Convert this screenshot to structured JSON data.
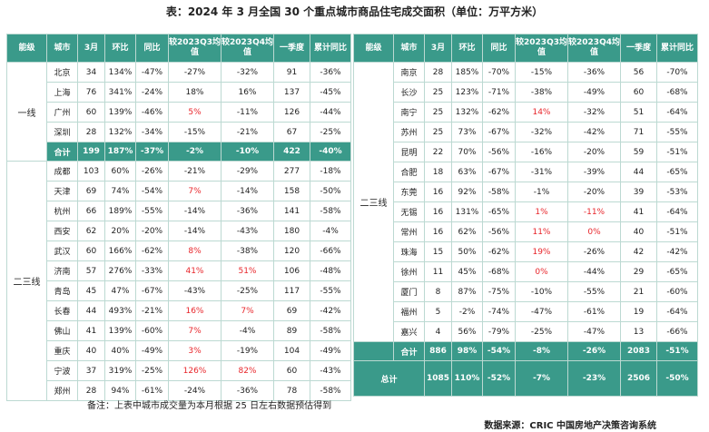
{
  "title": "表：2024 年 3 月全国 30 个重点城市商品住宅成交面积（单位：万平方米）",
  "headers": [
    "能级",
    "城市",
    "3月",
    "环比",
    "同比",
    "较2023Q3均值",
    "较2023Q4均值",
    "一季度",
    "累计同比"
  ],
  "left": {
    "groups": [
      {
        "name": "一线",
        "rows": [
          [
            "北京",
            "34",
            "134%",
            "-47%",
            "-27%",
            "-32%",
            "91",
            "-36%"
          ],
          [
            "上海",
            "76",
            "341%",
            "-24%",
            "18%",
            "16%",
            "137",
            "-45%"
          ],
          [
            "广州",
            "60",
            "139%",
            "-46%",
            "5%",
            "-11%",
            "126",
            "-44%"
          ],
          [
            "深圳",
            "28",
            "132%",
            "-34%",
            "-15%",
            "-21%",
            "67",
            "-25%"
          ]
        ],
        "red": [
          [
            2,
            5
          ]
        ]
      },
      {
        "name": "二三线",
        "rows": [
          [
            "成都",
            "103",
            "60%",
            "-26%",
            "-21%",
            "-29%",
            "277",
            "-18%"
          ],
          [
            "天津",
            "69",
            "74%",
            "-54%",
            "7%",
            "-14%",
            "158",
            "-50%"
          ],
          [
            "杭州",
            "66",
            "189%",
            "-55%",
            "-14%",
            "-36%",
            "141",
            "-58%"
          ],
          [
            "西安",
            "62",
            "20%",
            "-20%",
            "-14%",
            "-43%",
            "180",
            "-4%"
          ],
          [
            "武汉",
            "60",
            "166%",
            "-62%",
            "8%",
            "-38%",
            "120",
            "-66%"
          ],
          [
            "济南",
            "57",
            "276%",
            "-33%",
            "41%",
            "51%",
            "106",
            "-48%"
          ],
          [
            "青岛",
            "45",
            "47%",
            "-67%",
            "-43%",
            "-25%",
            "117",
            "-55%"
          ],
          [
            "长春",
            "44",
            "493%",
            "-21%",
            "16%",
            "7%",
            "69",
            "-42%"
          ],
          [
            "佛山",
            "41",
            "139%",
            "-60%",
            "7%",
            "-4%",
            "89",
            "-58%"
          ],
          [
            "重庆",
            "40",
            "40%",
            "-49%",
            "3%",
            "-19%",
            "104",
            "-49%"
          ],
          [
            "宁波",
            "37",
            "319%",
            "-25%",
            "126%",
            "82%",
            "60",
            "-43%"
          ],
          [
            "郑州",
            "28",
            "94%",
            "-61%",
            "-24%",
            "-36%",
            "78",
            "-58%"
          ]
        ],
        "red": [
          [
            1,
            5
          ],
          [
            4,
            5
          ],
          [
            5,
            5
          ],
          [
            5,
            6
          ],
          [
            7,
            5
          ],
          [
            7,
            6
          ],
          [
            8,
            5
          ],
          [
            9,
            5
          ],
          [
            10,
            5
          ],
          [
            10,
            6
          ]
        ]
      }
    ],
    "total": [
      "合计",
      "199",
      "187%",
      "-37%",
      "-2%",
      "-10%",
      "422",
      "-40%"
    ]
  },
  "right": {
    "group": "二三线",
    "rows_a": [
      [
        "南京",
        "28",
        "185%",
        "-70%",
        "-15%",
        "-36%",
        "56",
        "-70%"
      ],
      [
        "长沙",
        "25",
        "123%",
        "-71%",
        "-38%",
        "-49%",
        "60",
        "-68%"
      ],
      [
        "南宁",
        "25",
        "132%",
        "-62%",
        "14%",
        "-32%",
        "51",
        "-64%"
      ],
      [
        "苏州",
        "25",
        "73%",
        "-67%",
        "-32%",
        "-42%",
        "71",
        "-55%"
      ],
      [
        "昆明",
        "22",
        "70%",
        "-56%",
        "-16%",
        "-20%",
        "59",
        "-51%"
      ]
    ],
    "rows_b": [
      [
        "合肥",
        "18",
        "63%",
        "-67%",
        "-31%",
        "-39%",
        "44",
        "-65%"
      ],
      [
        "东莞",
        "16",
        "92%",
        "-58%",
        "-1%",
        "-20%",
        "39",
        "-53%"
      ],
      [
        "无锡",
        "16",
        "131%",
        "-65%",
        "1%",
        "-11%",
        "41",
        "-64%"
      ],
      [
        "常州",
        "16",
        "62%",
        "-56%",
        "11%",
        "0%",
        "40",
        "-51%"
      ],
      [
        "珠海",
        "15",
        "50%",
        "-62%",
        "19%",
        "-26%",
        "42",
        "-42%"
      ],
      [
        "徐州",
        "11",
        "45%",
        "-68%",
        "0%",
        "-44%",
        "29",
        "-65%"
      ],
      [
        "厦门",
        "8",
        "87%",
        "-75%",
        "-10%",
        "-55%",
        "21",
        "-60%"
      ],
      [
        "福州",
        "5",
        "-2%",
        "-74%",
        "-47%",
        "-61%",
        "19",
        "-64%"
      ],
      [
        "嘉兴",
        "4",
        "56%",
        "-79%",
        "-25%",
        "-47%",
        "13",
        "-66%"
      ]
    ],
    "red_a": [
      [
        2,
        5
      ]
    ],
    "red_b": [
      [
        2,
        5
      ],
      [
        2,
        6
      ],
      [
        3,
        5
      ],
      [
        3,
        6
      ],
      [
        4,
        5
      ],
      [
        5,
        5
      ]
    ],
    "total": [
      "合计",
      "886",
      "98%",
      "-54%",
      "-8%",
      "-26%",
      "2083",
      "-51%"
    ],
    "grand_total": [
      "总计",
      "1085",
      "110%",
      "-52%",
      "-7%",
      "-23%",
      "2506",
      "-50%"
    ]
  },
  "note": "备注：上表中城市成交量为本月根据 25 日左右数据预估得到",
  "source": "数据来源：CRIC 中国房地产决策咨询系统"
}
